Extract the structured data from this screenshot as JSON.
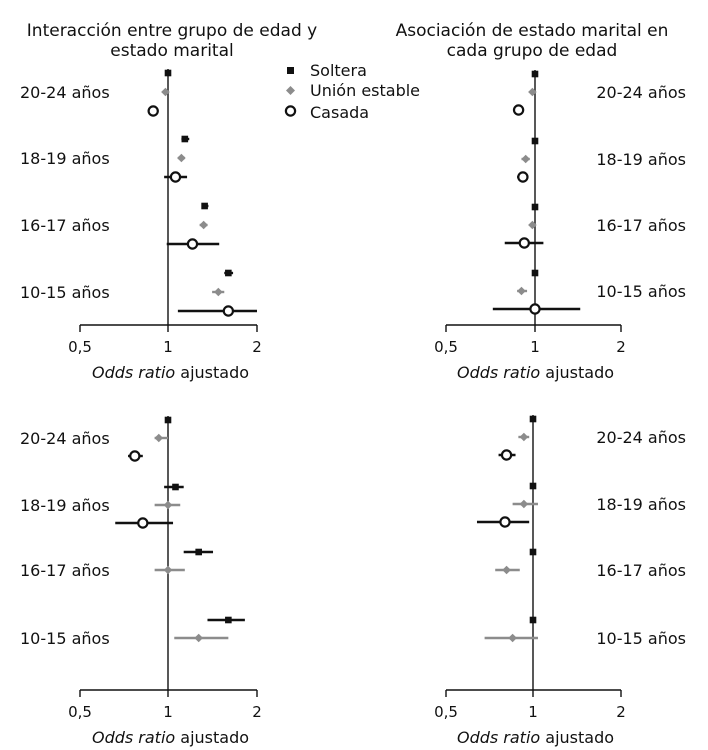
{
  "titles": {
    "left": [
      "Interacción entre grupo de edad y",
      "estado marital"
    ],
    "right": [
      "Asociación de estado marital en",
      "cada grupo de edad"
    ]
  },
  "legend": {
    "items": [
      {
        "label": "Soltera",
        "marker": "square",
        "color": "#111111"
      },
      {
        "label": "Unión estable",
        "marker": "diamond",
        "color": "#8c8c8c"
      },
      {
        "label": "Casada",
        "marker": "circle-open",
        "color": "#111111"
      }
    ]
  },
  "colors": {
    "black": "#111111",
    "gray": "#8c8c8c"
  },
  "chart_data": [
    {
      "type": "forest",
      "scale": "log",
      "xlabel_italic": "Odds ratio",
      "xlabel_rest": " ajustado",
      "xticks": [
        0.5,
        1,
        2
      ],
      "xtick_labels": [
        "0,5",
        "1",
        "2"
      ],
      "xlim": [
        0.5,
        2
      ],
      "reference_line": 1,
      "groups": [
        "20-24 años",
        "18-19 años",
        "16-17 años",
        "10-15 años"
      ],
      "group_label_side": "left",
      "series": [
        {
          "name": "Soltera",
          "marker": "square",
          "color": "#111111",
          "values": [
            1.0,
            1.14,
            1.33,
            1.6
          ],
          "ci": [
            [
              1.0,
              1.0
            ],
            [
              1.11,
              1.18
            ],
            [
              1.3,
              1.37
            ],
            [
              1.55,
              1.66
            ]
          ]
        },
        {
          "name": "Unión estable",
          "marker": "diamond",
          "color": "#8c8c8c",
          "values": [
            0.98,
            1.11,
            1.32,
            1.48
          ],
          "ci": [
            [
              0.97,
              1.0
            ],
            [
              1.08,
              1.14
            ],
            [
              1.28,
              1.36
            ],
            [
              1.41,
              1.55
            ]
          ]
        },
        {
          "name": "Casada",
          "marker": "circle-open",
          "color": "#111111",
          "values": [
            0.89,
            1.06,
            1.21,
            1.6
          ],
          "ci": [
            [
              0.88,
              0.9
            ],
            [
              0.97,
              1.16
            ],
            [
              0.99,
              1.49
            ],
            [
              1.08,
              2.0
            ]
          ]
        }
      ]
    },
    {
      "type": "forest",
      "scale": "log",
      "xlabel_italic": "Odds ratio",
      "xlabel_rest": " ajustado",
      "xticks": [
        0.5,
        1,
        2
      ],
      "xtick_labels": [
        "0,5",
        "1",
        "2"
      ],
      "xlim": [
        0.5,
        2
      ],
      "reference_line": 1,
      "groups": [
        "20-24 años",
        "18-19 años",
        "16-17 años",
        "10-15 años"
      ],
      "group_label_side": "right",
      "series": [
        {
          "name": "Soltera",
          "marker": "square",
          "color": "#111111",
          "values": [
            1.0,
            1.0,
            1.0,
            1.0
          ],
          "ci": [
            [
              1.0,
              1.0
            ],
            [
              1.0,
              1.0
            ],
            [
              1.0,
              1.0
            ],
            [
              1.0,
              1.0
            ]
          ]
        },
        {
          "name": "Unión estable",
          "marker": "diamond",
          "color": "#8c8c8c",
          "values": [
            0.98,
            0.93,
            0.98,
            0.9
          ],
          "ci": [
            [
              0.97,
              0.99
            ],
            [
              0.9,
              0.96
            ],
            [
              0.96,
              1.0
            ],
            [
              0.87,
              0.94
            ]
          ]
        },
        {
          "name": "Casada",
          "marker": "circle-open",
          "color": "#111111",
          "values": [
            0.88,
            0.91,
            0.92,
            1.0
          ],
          "ci": [
            [
              0.87,
              0.89
            ],
            [
              0.87,
              0.95
            ],
            [
              0.79,
              1.07
            ],
            [
              0.72,
              1.44
            ]
          ]
        }
      ]
    },
    {
      "type": "forest",
      "scale": "log",
      "xlabel_italic": "Odds ratio",
      "xlabel_rest": " ajustado",
      "xticks": [
        0.5,
        1,
        2
      ],
      "xtick_labels": [
        "0,5",
        "1",
        "2"
      ],
      "xlim": [
        0.5,
        2
      ],
      "reference_line": 1,
      "groups": [
        "20-24 años",
        "18-19 años",
        "16-17 años",
        "10-15 años"
      ],
      "group_label_side": "left",
      "series": [
        {
          "name": "Soltera",
          "marker": "square",
          "color": "#111111",
          "values": [
            1.0,
            1.06,
            1.27,
            1.6
          ],
          "ci": [
            [
              1.0,
              1.0
            ],
            [
              0.97,
              1.13
            ],
            [
              1.13,
              1.42
            ],
            [
              1.36,
              1.82
            ]
          ]
        },
        {
          "name": "Unión estable",
          "marker": "diamond",
          "color": "#8c8c8c",
          "values": [
            0.93,
            1.0,
            1.0,
            1.27
          ],
          "ci": [
            [
              0.9,
              1.0
            ],
            [
              0.9,
              1.1
            ],
            [
              0.9,
              1.14
            ],
            [
              1.05,
              1.6
            ]
          ]
        },
        {
          "name": "Casada",
          "marker": "circle-open",
          "color": "#111111",
          "values": [
            0.77,
            0.82,
            null,
            null
          ],
          "ci": [
            [
              0.73,
              0.82
            ],
            [
              0.66,
              1.04
            ],
            null,
            null
          ]
        }
      ]
    },
    {
      "type": "forest",
      "scale": "log",
      "xlabel_italic": "Odds ratio",
      "xlabel_rest": " ajustado",
      "xticks": [
        0.5,
        1,
        2
      ],
      "xtick_labels": [
        "0,5",
        "1",
        "2"
      ],
      "xlim": [
        0.5,
        2
      ],
      "reference_line": 1,
      "groups": [
        "20-24 años",
        "18-19 años",
        "16-17 años",
        "10-15 años"
      ],
      "group_label_side": "right",
      "series": [
        {
          "name": "Soltera",
          "marker": "square",
          "color": "#111111",
          "values": [
            1.0,
            1.0,
            1.0,
            1.0
          ],
          "ci": [
            [
              1.0,
              1.0
            ],
            [
              1.0,
              1.0
            ],
            [
              1.0,
              1.0
            ],
            [
              1.0,
              1.0
            ]
          ]
        },
        {
          "name": "Unión estable",
          "marker": "diamond",
          "color": "#8c8c8c",
          "values": [
            0.93,
            0.93,
            0.81,
            0.85
          ],
          "ci": [
            [
              0.89,
              0.97
            ],
            [
              0.85,
              1.04
            ],
            [
              0.74,
              0.9
            ],
            [
              0.68,
              1.04
            ]
          ]
        },
        {
          "name": "Casada",
          "marker": "circle-open",
          "color": "#111111",
          "values": [
            0.81,
            0.8,
            null,
            null
          ],
          "ci": [
            [
              0.76,
              0.87
            ],
            [
              0.64,
              0.97
            ],
            null,
            null
          ]
        }
      ]
    }
  ]
}
